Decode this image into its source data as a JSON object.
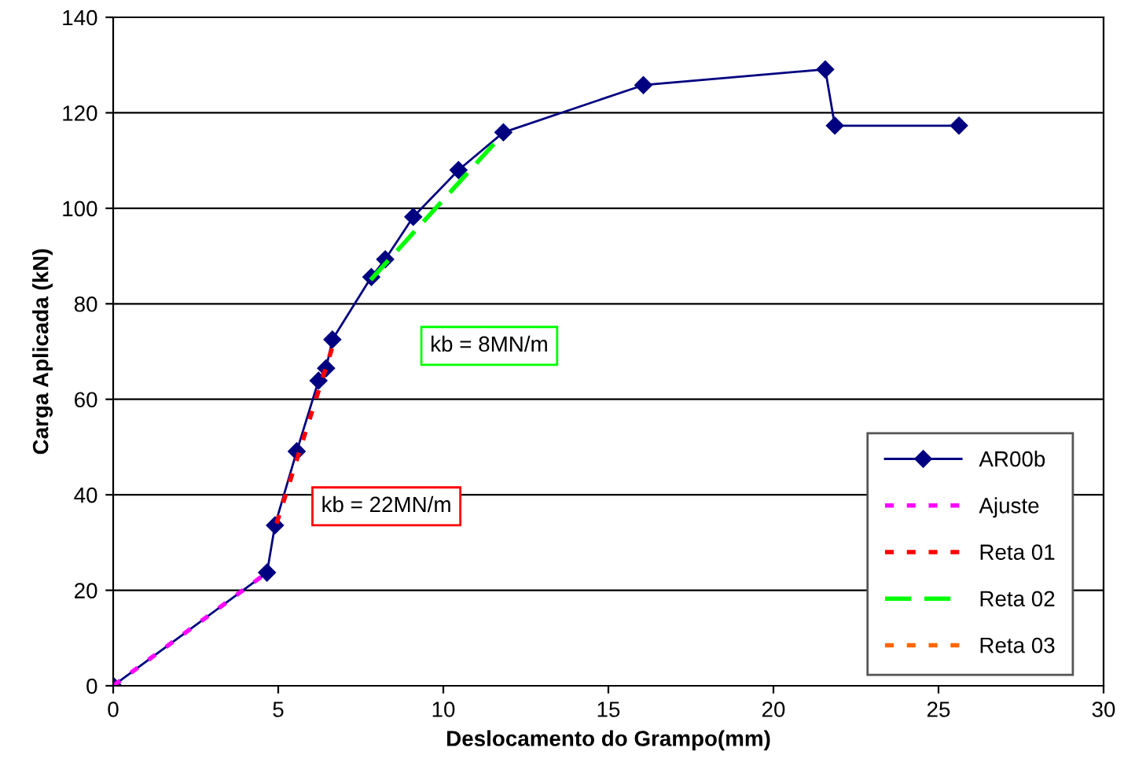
{
  "chart_data": {
    "type": "line",
    "xlabel": "Deslocamento do Grampo(mm)",
    "ylabel": "Carga Aplicada (kN)",
    "xlim": [
      0,
      30
    ],
    "xticks": [
      0,
      5,
      10,
      15,
      20,
      25,
      30
    ],
    "ylim": [
      0,
      140
    ],
    "yticks": [
      0,
      20,
      40,
      60,
      80,
      100,
      120,
      140
    ],
    "grid": "y",
    "legend": "bottom right",
    "annotations": [
      "kb = 8MN/m",
      "kb = 22MN/m"
    ],
    "series": [
      {
        "name": "AR00b",
        "color": "#000080",
        "marker": "diamond",
        "line_style": "solid",
        "x": [
          0,
          4.66,
          4.9,
          5.56,
          6.22,
          6.45,
          6.64,
          7.82,
          8.24,
          9.09,
          10.46,
          11.82,
          16.06,
          21.57,
          21.86,
          25.62
        ],
        "values": [
          0,
          23.7,
          33.6,
          49.1,
          63.9,
          66.5,
          72.5,
          85.6,
          89.3,
          98.2,
          108.0,
          115.9,
          125.8,
          129.1,
          117.3,
          117.3
        ]
      },
      {
        "name": "Ajuste",
        "color": "#ff00ff",
        "marker": "none",
        "line_style": "dotted",
        "x": [
          0,
          4.66
        ],
        "values": [
          0,
          23.7
        ]
      },
      {
        "name": "Reta 01",
        "color": "#ff0000",
        "marker": "none",
        "line_style": "dotted",
        "x": [
          4.95,
          6.69
        ],
        "values": [
          34,
          72
        ]
      },
      {
        "name": "Reta 02",
        "color": "#00ff00",
        "marker": "none",
        "line_style": "dashed",
        "x": [
          7.8,
          11.6
        ],
        "values": [
          85,
          114
        ]
      },
      {
        "name": "Reta 03",
        "color": "#ff6600",
        "marker": "none",
        "line_style": "dotted"
      }
    ]
  }
}
